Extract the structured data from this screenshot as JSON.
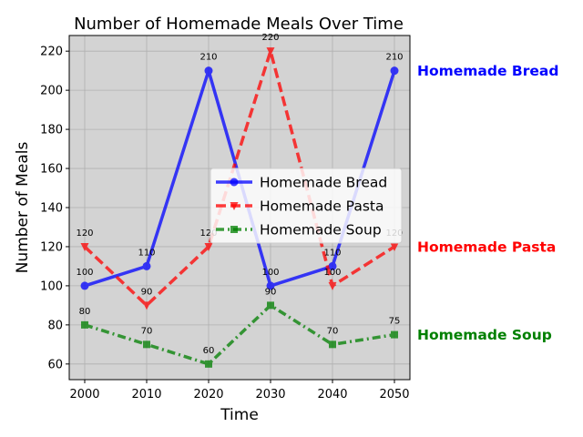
{
  "chart_data": {
    "type": "line",
    "title": "Number of Homemade Meals Over Time",
    "xlabel": "Time",
    "ylabel": "Number of Meals",
    "x": [
      2000,
      2010,
      2020,
      2030,
      2040,
      2050
    ],
    "x_ticks": [
      "2000",
      "2010",
      "2020",
      "2030",
      "2040",
      "2050"
    ],
    "y_ticks": [
      "60",
      "80",
      "100",
      "120",
      "140",
      "160",
      "180",
      "200",
      "220"
    ],
    "xlim": [
      1997.5,
      2052.5
    ],
    "ylim": [
      52,
      228
    ],
    "grid": true,
    "legend_placement": "center-right",
    "series": [
      {
        "name": "Homemade Bread",
        "values": [
          100,
          110,
          210,
          100,
          110,
          210
        ],
        "labels": [
          "100",
          "110",
          "210",
          "100",
          "110",
          "210"
        ],
        "color": "#0000ff",
        "marker": "circle",
        "linestyle": "solid"
      },
      {
        "name": "Homemade Pasta",
        "values": [
          120,
          90,
          120,
          220,
          100,
          120
        ],
        "labels": [
          "120",
          "90",
          "120",
          "220",
          "100",
          "120"
        ],
        "color": "#ff0000",
        "marker": "triangle-down",
        "linestyle": "dashed"
      },
      {
        "name": "Homemade Soup",
        "values": [
          80,
          70,
          60,
          90,
          70,
          75
        ],
        "labels": [
          "80",
          "70",
          "60",
          "90",
          "70",
          "75"
        ],
        "color": "#008000",
        "marker": "square",
        "linestyle": "dashdot"
      }
    ],
    "end_labels": [
      "Homemade Bread",
      "Homemade Pasta",
      "Homemade Soup"
    ]
  }
}
